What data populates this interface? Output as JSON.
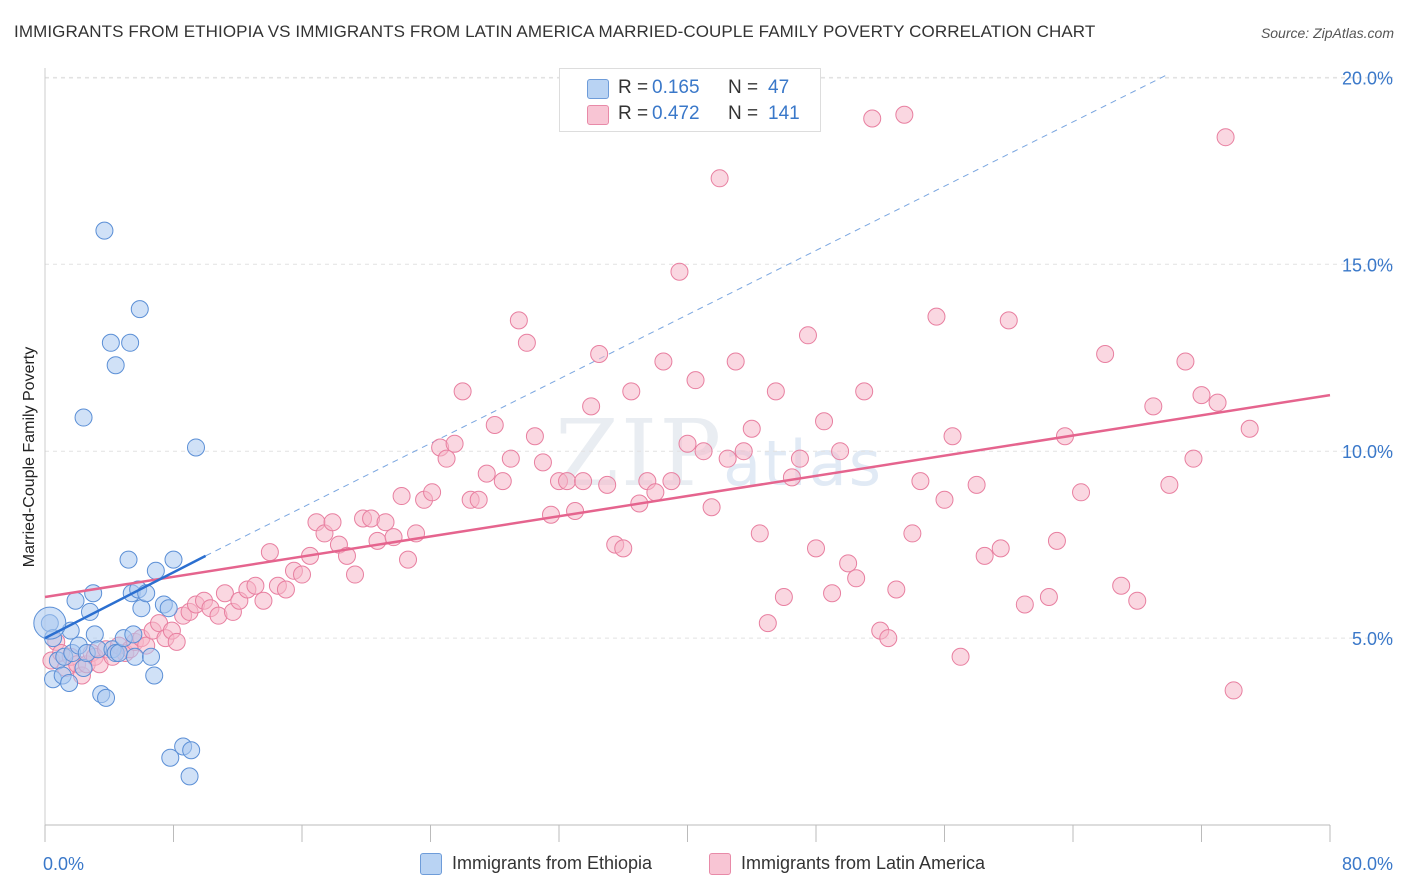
{
  "title": "IMMIGRANTS FROM ETHIOPIA VS IMMIGRANTS FROM LATIN AMERICA MARRIED-COUPLE FAMILY POVERTY CORRELATION CHART",
  "source": "Source: ZipAtlas.com",
  "watermark": {
    "zip": "ZIP",
    "atlas": "atlas"
  },
  "legend_top": [
    {
      "r_label": "R =",
      "r_value": "0.165",
      "n_label": "N =",
      "n_value": "47"
    },
    {
      "r_label": "R =",
      "r_value": "0.472",
      "n_label": "N =",
      "n_value": "141"
    }
  ],
  "chart_data": {
    "type": "scatter",
    "title": "IMMIGRANTS FROM ETHIOPIA VS IMMIGRANTS FROM LATIN AMERICA MARRIED-COUPLE FAMILY POVERTY CORRELATION CHART",
    "xlabel": "",
    "ylabel": "Married-Couple Family Poverty",
    "xlim": [
      0,
      80
    ],
    "ylim": [
      0,
      21
    ],
    "x_tick_labels": [
      "0.0%",
      "80.0%"
    ],
    "y_ticks": [
      5,
      10,
      15,
      20
    ],
    "y_tick_labels": [
      "5.0%",
      "10.0%",
      "15.0%",
      "20.0%"
    ],
    "grid": true,
    "legend_position": "top-center",
    "series": [
      {
        "name": "Immigrants from Ethiopia",
        "color": "#a9c8f0",
        "edge_color": "#5b8fd6",
        "r": 0.165,
        "n": 47,
        "trend": {
          "x": [
            0,
            10
          ],
          "y": [
            5.0,
            7.2
          ],
          "color": "#2b6fd0"
        },
        "trend_extension": {
          "x": [
            10,
            70
          ],
          "y": [
            7.2,
            20.1
          ],
          "color": "#7aa6e0"
        },
        "points": [
          [
            0.3,
            5.4
          ],
          [
            0.5,
            5.0
          ],
          [
            0.8,
            4.4
          ],
          [
            0.5,
            3.9
          ],
          [
            1.1,
            4.0
          ],
          [
            1.2,
            4.5
          ],
          [
            1.5,
            3.8
          ],
          [
            1.6,
            5.2
          ],
          [
            1.7,
            4.6
          ],
          [
            1.9,
            6.0
          ],
          [
            2.1,
            4.8
          ],
          [
            2.4,
            4.2
          ],
          [
            2.6,
            4.6
          ],
          [
            2.8,
            5.7
          ],
          [
            3.0,
            6.2
          ],
          [
            3.1,
            5.1
          ],
          [
            3.3,
            4.7
          ],
          [
            3.5,
            3.5
          ],
          [
            3.8,
            3.4
          ],
          [
            4.2,
            4.7
          ],
          [
            4.4,
            4.6
          ],
          [
            4.6,
            4.6
          ],
          [
            4.9,
            5.0
          ],
          [
            5.2,
            7.1
          ],
          [
            5.5,
            5.1
          ],
          [
            5.4,
            6.2
          ],
          [
            5.6,
            4.5
          ],
          [
            5.8,
            6.3
          ],
          [
            6.0,
            5.8
          ],
          [
            6.3,
            6.2
          ],
          [
            6.6,
            4.5
          ],
          [
            6.8,
            4.0
          ],
          [
            6.9,
            6.8
          ],
          [
            7.4,
            5.9
          ],
          [
            7.7,
            5.8
          ],
          [
            7.8,
            1.8
          ],
          [
            8.0,
            7.1
          ],
          [
            8.6,
            2.1
          ],
          [
            9.0,
            1.3
          ],
          [
            9.1,
            2.0
          ],
          [
            4.1,
            12.9
          ],
          [
            4.4,
            12.3
          ],
          [
            5.3,
            12.9
          ],
          [
            5.9,
            13.8
          ],
          [
            3.7,
            15.9
          ],
          [
            2.4,
            10.9
          ],
          [
            9.4,
            10.1
          ]
        ]
      },
      {
        "name": "Immigrants from Latin America",
        "color": "#f5b6c8",
        "edge_color": "#e87fa0",
        "r": 0.472,
        "n": 141,
        "trend": {
          "x": [
            0,
            80
          ],
          "y": [
            6.1,
            11.5
          ],
          "color": "#e5648e"
        },
        "points": [
          [
            0.4,
            4.4
          ],
          [
            0.7,
            4.9
          ],
          [
            1.0,
            4.6
          ],
          [
            1.3,
            4.2
          ],
          [
            1.6,
            4.5
          ],
          [
            2.0,
            4.3
          ],
          [
            2.3,
            4.0
          ],
          [
            2.6,
            4.3
          ],
          [
            2.9,
            4.6
          ],
          [
            3.1,
            4.5
          ],
          [
            3.4,
            4.3
          ],
          [
            3.8,
            4.7
          ],
          [
            4.2,
            4.5
          ],
          [
            4.6,
            4.8
          ],
          [
            5.0,
            4.6
          ],
          [
            5.3,
            4.7
          ],
          [
            5.6,
            4.9
          ],
          [
            6.0,
            5.0
          ],
          [
            6.3,
            4.8
          ],
          [
            6.7,
            5.2
          ],
          [
            7.1,
            5.4
          ],
          [
            7.5,
            5.0
          ],
          [
            7.9,
            5.2
          ],
          [
            8.2,
            4.9
          ],
          [
            8.6,
            5.6
          ],
          [
            9.0,
            5.7
          ],
          [
            9.4,
            5.9
          ],
          [
            9.9,
            6.0
          ],
          [
            10.3,
            5.8
          ],
          [
            10.8,
            5.6
          ],
          [
            11.2,
            6.2
          ],
          [
            11.7,
            5.7
          ],
          [
            12.1,
            6.0
          ],
          [
            12.6,
            6.3
          ],
          [
            13.1,
            6.4
          ],
          [
            13.6,
            6.0
          ],
          [
            14.0,
            7.3
          ],
          [
            14.5,
            6.4
          ],
          [
            15.0,
            6.3
          ],
          [
            15.5,
            6.8
          ],
          [
            16.0,
            6.7
          ],
          [
            16.5,
            7.2
          ],
          [
            16.9,
            8.1
          ],
          [
            17.4,
            7.8
          ],
          [
            17.9,
            8.1
          ],
          [
            18.3,
            7.5
          ],
          [
            18.8,
            7.2
          ],
          [
            19.3,
            6.7
          ],
          [
            19.8,
            8.2
          ],
          [
            20.3,
            8.2
          ],
          [
            20.7,
            7.6
          ],
          [
            21.2,
            8.1
          ],
          [
            21.7,
            7.7
          ],
          [
            22.2,
            8.8
          ],
          [
            22.6,
            7.1
          ],
          [
            23.1,
            7.8
          ],
          [
            23.6,
            8.7
          ],
          [
            24.1,
            8.9
          ],
          [
            24.6,
            10.1
          ],
          [
            25.0,
            9.8
          ],
          [
            25.5,
            10.2
          ],
          [
            26.0,
            11.6
          ],
          [
            26.5,
            8.7
          ],
          [
            27.0,
            8.7
          ],
          [
            27.5,
            9.4
          ],
          [
            28.0,
            10.7
          ],
          [
            28.5,
            9.2
          ],
          [
            29.0,
            9.8
          ],
          [
            29.5,
            13.5
          ],
          [
            30.0,
            12.9
          ],
          [
            30.5,
            10.4
          ],
          [
            31.0,
            9.7
          ],
          [
            31.5,
            8.3
          ],
          [
            32.0,
            9.2
          ],
          [
            32.5,
            9.2
          ],
          [
            33.0,
            8.4
          ],
          [
            33.5,
            9.2
          ],
          [
            34.0,
            11.2
          ],
          [
            34.5,
            12.6
          ],
          [
            35.0,
            9.1
          ],
          [
            35.5,
            7.5
          ],
          [
            36.0,
            7.4
          ],
          [
            36.5,
            11.6
          ],
          [
            37.0,
            8.6
          ],
          [
            37.5,
            9.2
          ],
          [
            38.0,
            8.9
          ],
          [
            38.5,
            12.4
          ],
          [
            39.0,
            9.2
          ],
          [
            39.5,
            14.8
          ],
          [
            40.0,
            10.2
          ],
          [
            40.5,
            11.9
          ],
          [
            41.0,
            10.0
          ],
          [
            41.5,
            8.5
          ],
          [
            42.0,
            17.3
          ],
          [
            42.5,
            9.8
          ],
          [
            43.0,
            12.4
          ],
          [
            43.5,
            10.0
          ],
          [
            44.0,
            10.6
          ],
          [
            44.5,
            7.8
          ],
          [
            45.0,
            5.4
          ],
          [
            45.5,
            11.6
          ],
          [
            46.0,
            6.1
          ],
          [
            46.5,
            9.3
          ],
          [
            47.0,
            9.8
          ],
          [
            47.5,
            13.1
          ],
          [
            48.0,
            7.4
          ],
          [
            48.5,
            10.8
          ],
          [
            49.0,
            6.2
          ],
          [
            49.5,
            10.0
          ],
          [
            50.0,
            7.0
          ],
          [
            50.5,
            6.6
          ],
          [
            51.0,
            11.6
          ],
          [
            51.5,
            18.9
          ],
          [
            52.0,
            5.2
          ],
          [
            52.5,
            5.0
          ],
          [
            53.0,
            6.3
          ],
          [
            53.5,
            19.0
          ],
          [
            54.0,
            7.8
          ],
          [
            54.5,
            9.2
          ],
          [
            55.5,
            13.6
          ],
          [
            56.0,
            8.7
          ],
          [
            57.0,
            4.5
          ],
          [
            58.0,
            9.1
          ],
          [
            59.5,
            7.4
          ],
          [
            60.0,
            13.5
          ],
          [
            61.0,
            5.9
          ],
          [
            62.5,
            6.1
          ],
          [
            63.5,
            10.4
          ],
          [
            64.5,
            8.9
          ],
          [
            66.0,
            12.6
          ],
          [
            67.0,
            6.4
          ],
          [
            68.0,
            6.0
          ],
          [
            69.0,
            11.2
          ],
          [
            70.0,
            9.1
          ],
          [
            71.0,
            12.4
          ],
          [
            72.0,
            11.5
          ],
          [
            73.0,
            11.3
          ],
          [
            74.0,
            3.6
          ],
          [
            75.0,
            10.6
          ],
          [
            73.5,
            18.4
          ],
          [
            56.5,
            10.4
          ],
          [
            58.5,
            7.2
          ],
          [
            63.0,
            7.6
          ],
          [
            71.5,
            9.8
          ]
        ]
      }
    ]
  }
}
